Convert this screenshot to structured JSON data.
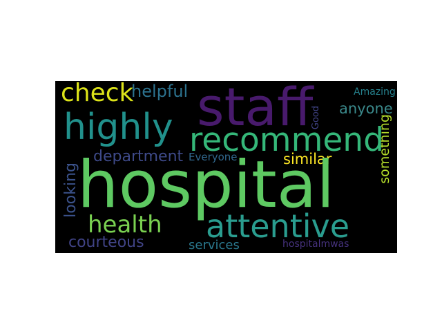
{
  "words": {
    "staff": {
      "text": "staff",
      "color": "#481a6c"
    },
    "highly": {
      "text": "highly",
      "color": "#21918c"
    },
    "recommend": {
      "text": "recommend",
      "color": "#35b779"
    },
    "check": {
      "text": "check",
      "color": "#dce319"
    },
    "helpful": {
      "text": "helpful",
      "color": "#2c728e"
    },
    "amazing": {
      "text": "Amazing",
      "color": "#26828e"
    },
    "anyone": {
      "text": "anyone",
      "color": "#3b8a8c"
    },
    "good": {
      "text": "Good",
      "color": "#414487"
    },
    "something": {
      "text": "something",
      "color": "#b5de2b"
    },
    "department": {
      "text": "department",
      "color": "#3e4a89"
    },
    "everyone": {
      "text": "Everyone",
      "color": "#31688e"
    },
    "similar": {
      "text": "similar",
      "color": "#fde725"
    },
    "hospital": {
      "text": "hospital",
      "color": "#5ec962"
    },
    "looking": {
      "text": "looking",
      "color": "#3b528b"
    },
    "health": {
      "text": "health",
      "color": "#7ad151"
    },
    "attentive": {
      "text": "attentive",
      "color": "#2a9d8f"
    },
    "courteous": {
      "text": "courteous",
      "color": "#414487"
    },
    "services": {
      "text": "services",
      "color": "#2a788e"
    },
    "hospitalmwas": {
      "text": "hospitalmwas",
      "color": "#46327e"
    }
  }
}
